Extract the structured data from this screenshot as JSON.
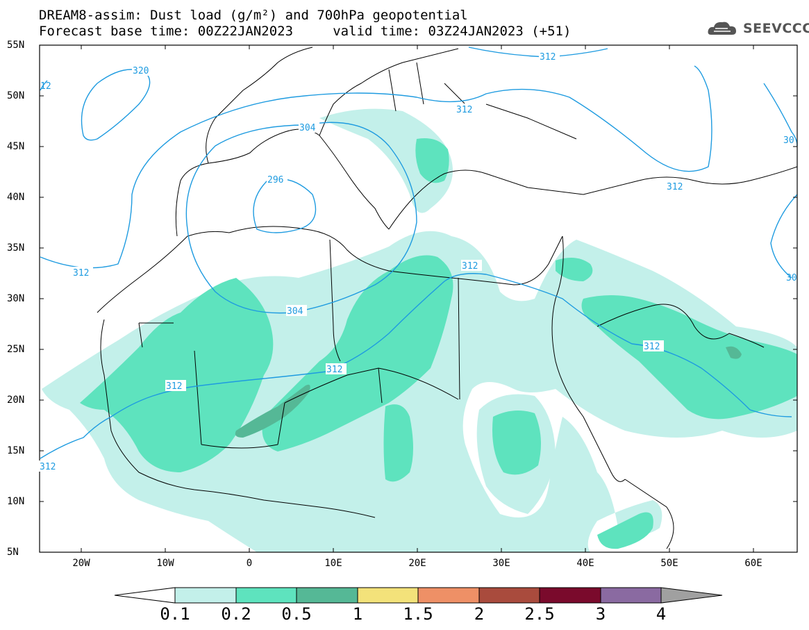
{
  "header": {
    "title_line1": "DREAM8-assim: Dust load (g/m²) and 700hPa geopotential",
    "title_line2": "Forecast base time: 00Z22JAN2023     valid time: 03Z24JAN2023 (+51)",
    "logo_text": "SEEVCCC"
  },
  "map": {
    "lat_labels": [
      "55N",
      "50N",
      "45N",
      "40N",
      "35N",
      "30N",
      "25N",
      "20N",
      "15N",
      "10N",
      "5N"
    ],
    "lon_labels": [
      "20W",
      "10W",
      "0",
      "10E",
      "20E",
      "30E",
      "40E",
      "50E",
      "60E"
    ],
    "contour_labels": [
      "312",
      "320",
      "312",
      "304",
      "296",
      "312",
      "304",
      "312",
      "312",
      "312",
      "312",
      "312",
      "312",
      "30",
      "30",
      "12"
    ]
  },
  "colorbar": {
    "levels": [
      "0.1",
      "0.2",
      "0.5",
      "1",
      "1.5",
      "2",
      "2.5",
      "3",
      "4"
    ],
    "colors": [
      "#c3f0ea",
      "#5ee3be",
      "#55b896",
      "#f3e27a",
      "#ee9066",
      "#a94b3d",
      "#7a0a2c",
      "#8a6aa1",
      "#a0a0a0"
    ]
  },
  "colors": {
    "contour": "#1e9be0",
    "dust_light": "#c3f0ea",
    "dust_mid": "#5ee3be",
    "dust_dark": "#55b896"
  }
}
